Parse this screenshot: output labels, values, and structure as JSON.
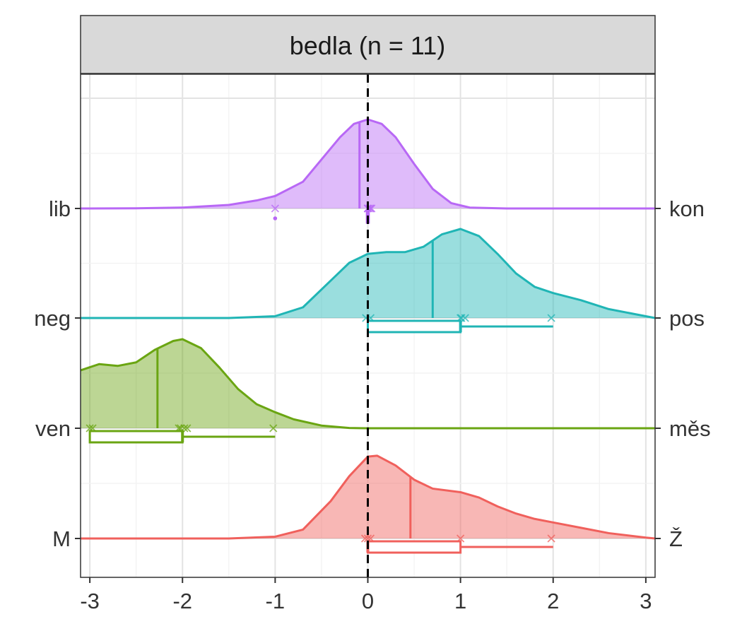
{
  "chart_data": {
    "type": "ridgeline-density",
    "title": "bedla (n = 11)",
    "xlabel": "",
    "ylabel": "",
    "xlim": [
      -3.1,
      3.1
    ],
    "x_ticks": [
      -3,
      -2,
      -1,
      0,
      1,
      2,
      3
    ],
    "x_tick_labels": [
      "-3",
      "-2",
      "-1",
      "0",
      "1",
      "2",
      "3"
    ],
    "reference_line_x": 0,
    "grid": true,
    "legend": "none",
    "rows": [
      {
        "left_label": "lib",
        "right_label": "kon",
        "color": "#B868F5",
        "density": [
          [
            -3.1,
            0
          ],
          [
            -2.5,
            0.002
          ],
          [
            -2.0,
            0.01
          ],
          [
            -1.5,
            0.04
          ],
          [
            -1.2,
            0.09
          ],
          [
            -1.0,
            0.14
          ],
          [
            -0.7,
            0.3
          ],
          [
            -0.5,
            0.55
          ],
          [
            -0.3,
            0.8
          ],
          [
            -0.15,
            0.95
          ],
          [
            0,
            1.0
          ],
          [
            0.15,
            0.95
          ],
          [
            0.3,
            0.8
          ],
          [
            0.5,
            0.5
          ],
          [
            0.7,
            0.22
          ],
          [
            0.9,
            0.06
          ],
          [
            1.1,
            0.01
          ],
          [
            1.5,
            0
          ],
          [
            3.1,
            0
          ]
        ],
        "mean": -0.09,
        "points": [
          -1.0,
          0,
          0,
          0,
          0,
          0.02,
          0.03,
          0.04
        ],
        "box": {
          "min": -0.01,
          "q1": -0.01,
          "median": 0,
          "q3": 0.01,
          "max": 0.01
        },
        "outliers": [
          -1.0
        ]
      },
      {
        "left_label": "neg",
        "right_label": "pos",
        "color": "#20B5B5",
        "density": [
          [
            -3.1,
            0
          ],
          [
            -1.5,
            0
          ],
          [
            -1.0,
            0.02
          ],
          [
            -0.7,
            0.12
          ],
          [
            -0.4,
            0.42
          ],
          [
            -0.2,
            0.62
          ],
          [
            0,
            0.72
          ],
          [
            0.2,
            0.74
          ],
          [
            0.4,
            0.74
          ],
          [
            0.6,
            0.8
          ],
          [
            0.8,
            0.94
          ],
          [
            1.0,
            1.0
          ],
          [
            1.2,
            0.92
          ],
          [
            1.4,
            0.72
          ],
          [
            1.6,
            0.5
          ],
          [
            1.8,
            0.35
          ],
          [
            2.0,
            0.28
          ],
          [
            2.3,
            0.2
          ],
          [
            2.6,
            0.1
          ],
          [
            3.0,
            0.02
          ],
          [
            3.1,
            0
          ]
        ],
        "mean": 0.7,
        "points": [
          -0.02,
          0.03,
          1.0,
          1.01,
          1.05,
          1.98
        ],
        "box": {
          "min": 0,
          "q1": 0,
          "median": 1.0,
          "q3": 1.0,
          "max": 2.0
        },
        "outliers": []
      },
      {
        "left_label": "ven",
        "right_label": "měs",
        "color": "#6AA512",
        "density": [
          [
            -3.1,
            0.65
          ],
          [
            -2.9,
            0.72
          ],
          [
            -2.7,
            0.7
          ],
          [
            -2.5,
            0.74
          ],
          [
            -2.3,
            0.88
          ],
          [
            -2.1,
            0.98
          ],
          [
            -2.0,
            1.0
          ],
          [
            -1.8,
            0.9
          ],
          [
            -1.6,
            0.68
          ],
          [
            -1.4,
            0.44
          ],
          [
            -1.2,
            0.27
          ],
          [
            -1.0,
            0.18
          ],
          [
            -0.8,
            0.1
          ],
          [
            -0.5,
            0.03
          ],
          [
            -0.2,
            0.003
          ],
          [
            0,
            0
          ],
          [
            3.1,
            0
          ]
        ],
        "mean": -2.27,
        "points": [
          -3.0,
          -2.97,
          -2.04,
          -2.02,
          -1.98,
          -1.95,
          -1.02
        ],
        "box": {
          "min": -3.0,
          "q1": -3.0,
          "median": -2.0,
          "q3": -2.0,
          "max": -1.0
        },
        "outliers": []
      },
      {
        "left_label": "M",
        "right_label": "Ž",
        "color": "#F0605C",
        "density": [
          [
            -3.1,
            0
          ],
          [
            -1.5,
            0
          ],
          [
            -1.0,
            0.02
          ],
          [
            -0.7,
            0.1
          ],
          [
            -0.4,
            0.42
          ],
          [
            -0.2,
            0.7
          ],
          [
            0,
            0.92
          ],
          [
            0.1,
            0.93
          ],
          [
            0.3,
            0.82
          ],
          [
            0.5,
            0.66
          ],
          [
            0.7,
            0.56
          ],
          [
            1.0,
            0.52
          ],
          [
            1.2,
            0.46
          ],
          [
            1.4,
            0.36
          ],
          [
            1.6,
            0.28
          ],
          [
            1.8,
            0.22
          ],
          [
            2.0,
            0.18
          ],
          [
            2.3,
            0.12
          ],
          [
            2.6,
            0.06
          ],
          [
            3.0,
            0.01
          ],
          [
            3.1,
            0
          ]
        ],
        "mean": 0.46,
        "points": [
          -0.03,
          0,
          0.03,
          1.0,
          1.98
        ],
        "box": {
          "min": 0,
          "q1": 0,
          "median": 0,
          "q3": 1.0,
          "max": 2.0
        },
        "outliers": []
      }
    ]
  }
}
